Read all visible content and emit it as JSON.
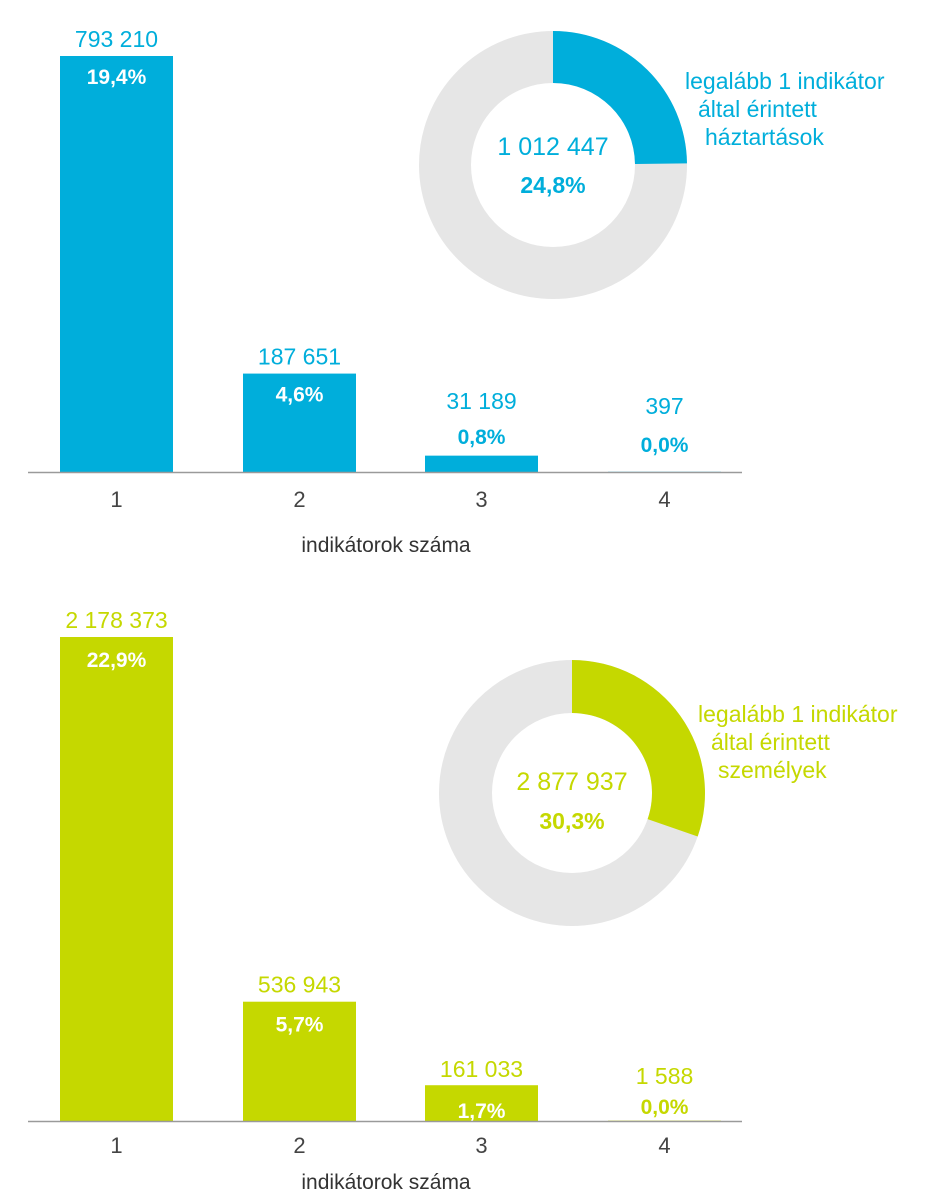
{
  "chart_data": [
    {
      "type": "bar",
      "color": "#00AEDB",
      "categories": [
        "1",
        "2",
        "3",
        "4"
      ],
      "values": [
        793210,
        187651,
        31189,
        397
      ],
      "value_labels": [
        "793 210",
        "187 651",
        "31 189",
        "397"
      ],
      "percent_labels": [
        "19,4%",
        "4,6%",
        "0,8%",
        "0,0%"
      ],
      "xlabel": "indikátorok száma",
      "donut": {
        "value_label": "1 012 447",
        "percent_label": "24,8%",
        "fraction": 0.248,
        "remainder_color": "#E6E6E6",
        "legend_lines": [
          "legalább 1 indikátor",
          "által érintett",
          "háztartások"
        ]
      }
    },
    {
      "type": "bar",
      "color": "#C5D800",
      "categories": [
        "1",
        "2",
        "3",
        "4"
      ],
      "values": [
        2178373,
        536943,
        161033,
        1588
      ],
      "value_labels": [
        "2 178 373",
        "536 943",
        "161 033",
        "1 588"
      ],
      "percent_labels": [
        "22,9%",
        "5,7%",
        "1,7%",
        "0,0%"
      ],
      "xlabel": "indikátorok száma",
      "donut": {
        "value_label": "2 877 937",
        "percent_label": "30,3%",
        "fraction": 0.303,
        "remainder_color": "#E6E6E6",
        "legend_lines": [
          "legalább 1 indikátor",
          "által érintett",
          "személyek"
        ]
      }
    }
  ]
}
